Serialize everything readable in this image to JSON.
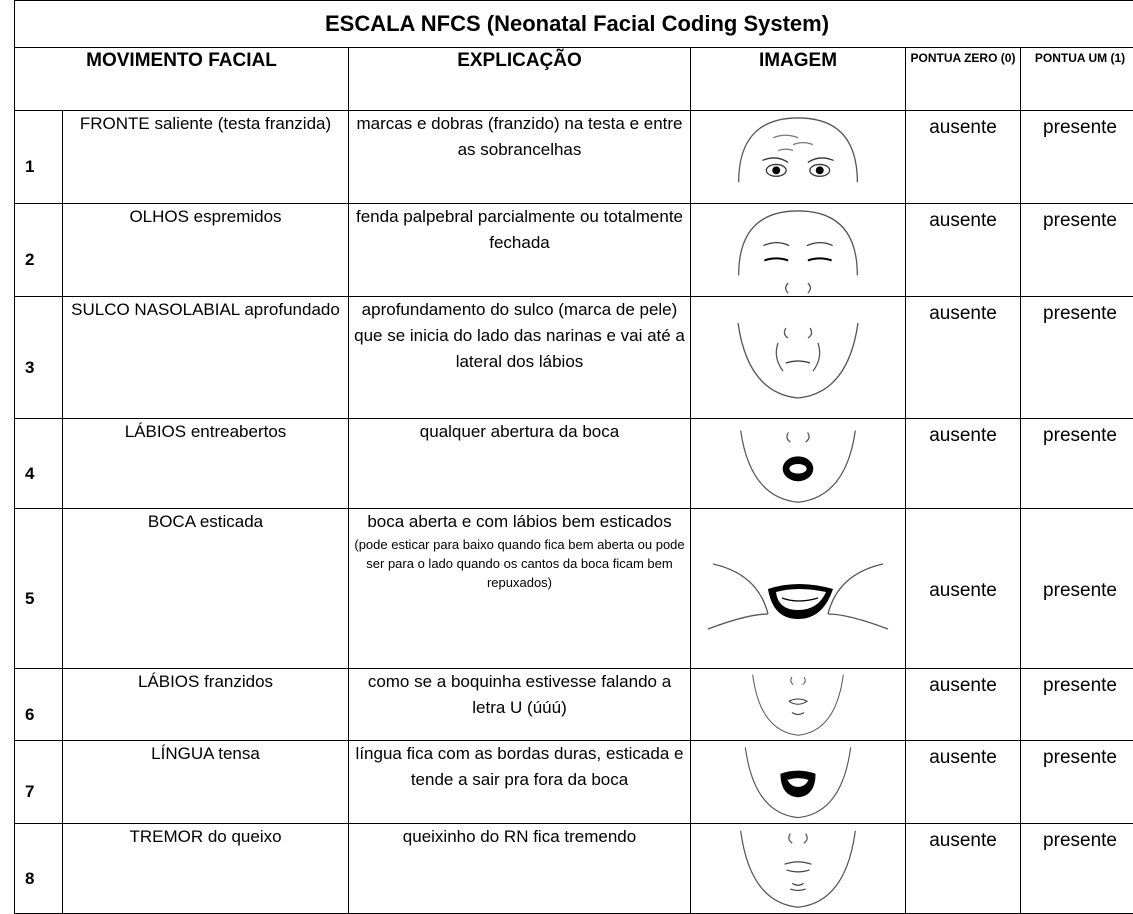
{
  "table": {
    "title": "ESCALA NFCS (Neonatal Facial Coding System)",
    "headers": [
      "MOVIMENTO FACIAL",
      "EXPLICAÇÃO",
      "IMAGEM",
      "PONTUA ZERO (0)",
      "PONTUA UM (1)"
    ],
    "rows": [
      {
        "number": 1,
        "movement": "FRONTE saliente (testa franzida)",
        "explanation": "marcas e dobras (franzido) na testa e entre as sobrancelhas",
        "zero": "ausente",
        "one": "presente"
      },
      {
        "number": 2,
        "movement": "OLHOS espremidos",
        "explanation": "fenda palpebral parcialmente ou totalmente fechada",
        "zero": "ausente",
        "one": "presente"
      },
      {
        "number": 3,
        "movement": "SULCO NASOLABIAL aprofundado",
        "explanation": "aprofundamento do sulco (marca de pele) que se inicia do lado das narinas e vai até a lateral dos lábios",
        "zero": "ausente",
        "one": "presente"
      },
      {
        "number": 4,
        "movement": "LÁBIOS entreabertos",
        "explanation": "qualquer abertura da boca",
        "zero": "ausente",
        "one": "presente"
      },
      {
        "number": 5,
        "movement": "BOCA esticada",
        "explanation": "boca aberta e com lábios bem esticados",
        "note": "(pode esticar para baixo quando fica bem aberta ou pode ser para o lado quando os cantos da boca ficam bem repuxados)",
        "zero": "ausente",
        "one": "presente"
      },
      {
        "number": 6,
        "movement": "LÁBIOS franzidos",
        "explanation": "como se a boquinha estivesse falando a letra U (úúú)",
        "zero": "ausente",
        "one": "presente"
      },
      {
        "number": 7,
        "movement": "LÍNGUA tensa",
        "explanation": "língua fica com as bordas duras, esticada e tende a sair pra fora da boca",
        "zero": "ausente",
        "one": "presente"
      },
      {
        "number": 8,
        "movement": "TREMOR do queixo",
        "explanation": "queixinho do RN fica tremendo",
        "zero": "ausente",
        "one": "presente"
      }
    ]
  }
}
